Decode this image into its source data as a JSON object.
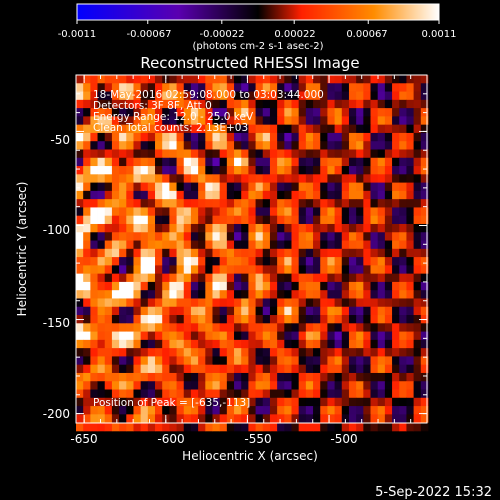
{
  "title": "Reconstructed RHESSI Image",
  "info_lines": [
    "18-May-2016 02:59:08.000 to 03:03:44.000",
    "Detectors: 3F 8F, Att 0",
    "Energy Range: 12.0 - 25.0 keV",
    "Clean    Total counts: 2.13E+03"
  ],
  "peak_label": "Position of Peak = [-635,-113]",
  "footer_date": "5-Sep-2022 15:32",
  "colorbar": {
    "tick_labels": [
      "-0.0011",
      "-0.00067",
      "-0.00022",
      "0.00022",
      "0.00067",
      "0.0011"
    ],
    "tick_values": [
      -0.0011,
      -0.00067,
      -0.00022,
      0.00022,
      0.00067,
      0.0011
    ],
    "range": [
      -0.0011,
      0.0011
    ],
    "units_label": "(photons cm-2 s-1 asec-2)",
    "colors": [
      "#0000ff",
      "#5a00b0",
      "#000000",
      "#ff2000",
      "#ff8c00",
      "#ffffff"
    ]
  },
  "chart_data": {
    "type": "heatmap",
    "title": "Reconstructed RHESSI Image",
    "xlabel": "Heliocentric X (arcsec)",
    "ylabel": "Heliocentric Y (arcsec)",
    "xlim": [
      -655,
      -440
    ],
    "ylim": [
      -205,
      -20
    ],
    "x_ticks": [
      -650,
      -600,
      -550,
      -500
    ],
    "y_ticks": [
      -50,
      -100,
      -150,
      -200
    ],
    "peak_position": [
      -635,
      -113
    ],
    "value_range": [
      -0.0011,
      0.0011
    ]
  }
}
